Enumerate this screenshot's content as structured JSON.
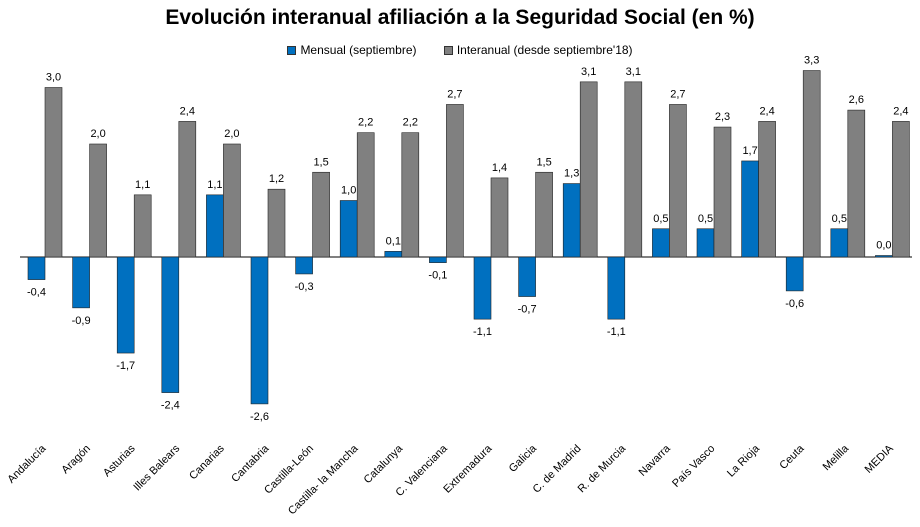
{
  "chart_data": {
    "type": "bar",
    "title": "Evolución interanual afiliación a la Seguridad Social (en %)",
    "categories": [
      "Andalucía",
      "Aragón",
      "Asturias",
      "Illes Balears",
      "Canarias",
      "Cantabria",
      "Castilla-León",
      "Castilla- la Mancha",
      "Catalunya",
      "C. Valenciana",
      "Extremadura",
      "Galicia",
      "C. de Madrid",
      "R. de Murcia",
      "Navarra",
      "País Vasco",
      "La Rioja",
      "Ceuta",
      "Melilla",
      "MEDIA"
    ],
    "series": [
      {
        "name": "Mensual (septiembre)",
        "color": "#0070C0",
        "values": [
          -0.4,
          -0.9,
          -1.7,
          -2.4,
          1.1,
          -2.6,
          -0.3,
          1.0,
          0.1,
          -0.1,
          -1.1,
          -0.7,
          1.3,
          -1.1,
          0.5,
          0.5,
          1.7,
          -0.6,
          0.5,
          0.0
        ],
        "labels": [
          "-0,4",
          "-0,9",
          "-1,7",
          "-2,4",
          "1,1",
          "-2,6",
          "-0,3",
          "1,0",
          "0,1",
          "-0,1",
          "-1,1",
          "-0,7",
          "1,3",
          "-1,1",
          "0,5",
          "0,5",
          "1,7",
          "-0,6",
          "0,5",
          "0,0"
        ]
      },
      {
        "name": "Interanual (desde septiembre'18)",
        "color": "#808080",
        "values": [
          3.0,
          2.0,
          1.1,
          2.4,
          2.0,
          1.2,
          1.5,
          2.2,
          2.2,
          2.7,
          1.4,
          1.5,
          3.1,
          3.1,
          2.7,
          2.3,
          2.4,
          3.3,
          2.6,
          2.4
        ],
        "labels": [
          "3,0",
          "2,0",
          "1,1",
          "2,4",
          "2,0",
          "1,2",
          "1,5",
          "2,2",
          "2,2",
          "2,7",
          "1,4",
          "1,5",
          "3,1",
          "3,1",
          "2,7",
          "2,3",
          "2,4",
          "3,3",
          "2,6",
          "2,4"
        ]
      }
    ],
    "grid": false,
    "legend_position": "top"
  }
}
